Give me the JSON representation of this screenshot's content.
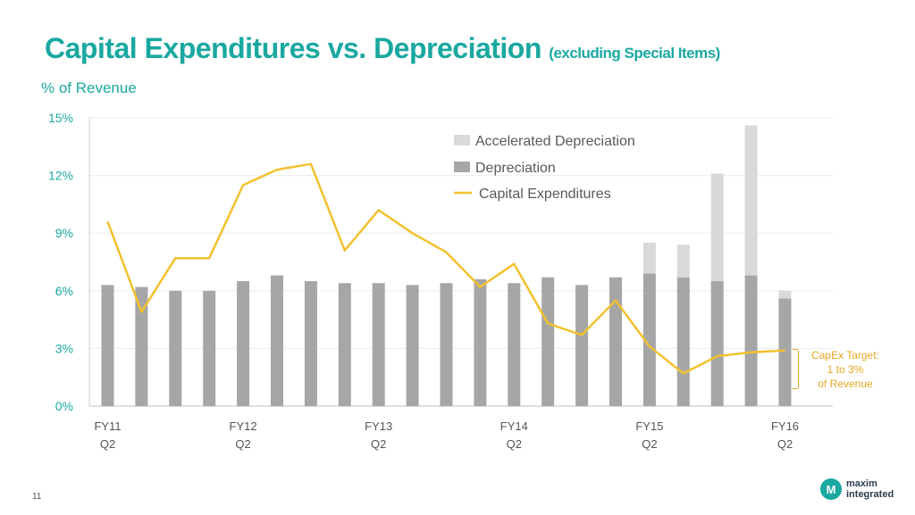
{
  "title": "Capital Expenditures vs. Depreciation",
  "subtitle": "(excluding Special Items)",
  "unit_label": "% of Revenue",
  "capex_target": [
    "CapEx Target:",
    "1 to 3%",
    "of Revenue"
  ],
  "page_number": "11",
  "logo": {
    "line1": "maxim",
    "line2": "integrated",
    "mark": "M"
  },
  "colors": {
    "accent": "#1aa8a0",
    "depreciation": "#a6a6a6",
    "accelerated": "#d9d9d9",
    "capex": "#f2c12e"
  },
  "chart_data": {
    "type": "bar",
    "ylim": [
      0,
      15
    ],
    "yticks": [
      "0%",
      "3%",
      "6%",
      "9%",
      "12%",
      "15%"
    ],
    "ytick_values": [
      0,
      3,
      6,
      9,
      12,
      15
    ],
    "grid": true,
    "legend_position": "top-right",
    "x_tick_labels": [
      {
        "index": 0,
        "lines": [
          "FY11",
          "Q2"
        ]
      },
      {
        "index": 4,
        "lines": [
          "FY12",
          "Q2"
        ]
      },
      {
        "index": 8,
        "lines": [
          "FY13",
          "Q2"
        ]
      },
      {
        "index": 12,
        "lines": [
          "FY14",
          "Q2"
        ]
      },
      {
        "index": 16,
        "lines": [
          "FY15",
          "Q2"
        ]
      },
      {
        "index": 20,
        "lines": [
          "FY16",
          "Q2"
        ]
      }
    ],
    "series": [
      {
        "name": "Accelerated Depreciation",
        "kind": "bar-stack",
        "values": [
          0,
          0,
          0,
          0,
          0,
          0,
          0,
          0,
          0,
          0,
          0,
          0,
          0,
          0,
          0,
          0,
          1.6,
          1.7,
          5.6,
          7.8,
          0.4
        ]
      },
      {
        "name": "Depreciation",
        "kind": "bar",
        "values": [
          6.3,
          6.2,
          6.0,
          6.0,
          6.5,
          6.8,
          6.5,
          6.4,
          6.4,
          6.3,
          6.4,
          6.6,
          6.4,
          6.7,
          6.3,
          6.7,
          6.9,
          6.7,
          6.5,
          6.8,
          5.6
        ]
      },
      {
        "name": "Capital Expenditures",
        "kind": "line",
        "values": [
          9.6,
          4.9,
          7.7,
          7.7,
          11.5,
          12.3,
          12.6,
          8.1,
          10.2,
          9.0,
          8.0,
          6.2,
          7.4,
          4.3,
          3.7,
          5.5,
          3.1,
          1.7,
          2.6,
          2.8,
          2.9
        ]
      }
    ]
  }
}
